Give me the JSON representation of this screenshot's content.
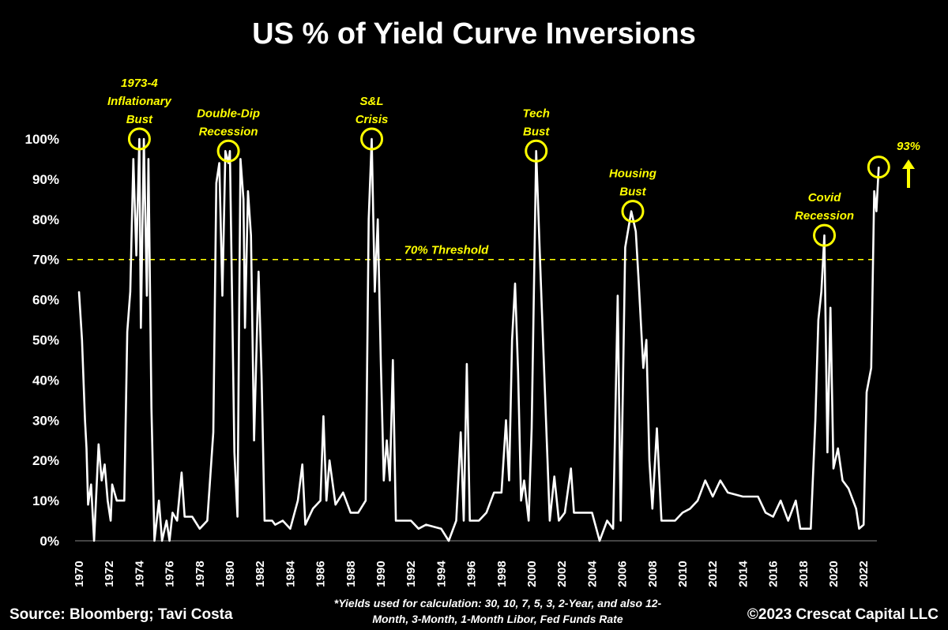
{
  "chart_data": {
    "type": "line",
    "title": "US % of Yield Curve Inversions",
    "xlabel": "",
    "ylabel": "",
    "xlim": [
      1970,
      2023.3
    ],
    "ylim": [
      0,
      100
    ],
    "yticks": [
      "0%",
      "10%",
      "20%",
      "30%",
      "40%",
      "50%",
      "60%",
      "70%",
      "80%",
      "90%",
      "100%"
    ],
    "xticks": [
      "1970",
      "1972",
      "1974",
      "1976",
      "1978",
      "1980",
      "1982",
      "1984",
      "1986",
      "1988",
      "1990",
      "1992",
      "1994",
      "1996",
      "1998",
      "2000",
      "2002",
      "2004",
      "2006",
      "2008",
      "2010",
      "2012",
      "2014",
      "2016",
      "2018",
      "2020",
      "2022"
    ],
    "threshold": {
      "value": 70,
      "label": "70% Threshold"
    },
    "series": [
      {
        "name": "US % of Yield Curve Inversions",
        "x": [
          1970.0,
          1970.2,
          1970.4,
          1970.5,
          1970.6,
          1970.8,
          1971.0,
          1971.3,
          1971.5,
          1971.7,
          1971.9,
          1972.1,
          1972.2,
          1972.5,
          1973.0,
          1973.2,
          1973.4,
          1973.6,
          1973.8,
          1974.0,
          1974.1,
          1974.3,
          1974.5,
          1974.6,
          1974.8,
          1975.0,
          1975.3,
          1975.5,
          1975.8,
          1976.0,
          1976.2,
          1976.5,
          1976.8,
          1977.0,
          1977.5,
          1978.0,
          1978.5,
          1978.9,
          1979.1,
          1979.3,
          1979.5,
          1979.7,
          1979.9,
          1980.0,
          1980.3,
          1980.5,
          1980.7,
          1980.9,
          1981.0,
          1981.2,
          1981.4,
          1981.6,
          1981.9,
          1982.1,
          1982.3,
          1982.8,
          1983.0,
          1983.5,
          1984.0,
          1984.5,
          1984.8,
          1985.0,
          1985.5,
          1986.0,
          1986.2,
          1986.4,
          1986.6,
          1987.0,
          1987.5,
          1988.0,
          1988.5,
          1989.0,
          1989.2,
          1989.4,
          1989.6,
          1989.8,
          1990.0,
          1990.2,
          1990.4,
          1990.6,
          1990.8,
          1991.0,
          1992.0,
          1992.5,
          1993.0,
          1994.0,
          1994.5,
          1995.0,
          1995.3,
          1995.5,
          1995.7,
          1995.9,
          1996.5,
          1997.0,
          1997.5,
          1998.0,
          1998.3,
          1998.5,
          1998.7,
          1998.9,
          1999.1,
          1999.3,
          1999.5,
          1999.8,
          2000.0,
          2000.3,
          2000.6,
          2000.9,
          2001.2,
          2001.5,
          2001.8,
          2002.2,
          2002.6,
          2002.8,
          2004.0,
          2004.5,
          2005.0,
          2005.4,
          2005.7,
          2005.9,
          2006.2,
          2006.6,
          2006.9,
          2007.1,
          2007.4,
          2007.6,
          2007.8,
          2008.0,
          2008.3,
          2008.6,
          2009.5,
          2010.0,
          2010.5,
          2011.0,
          2011.5,
          2012.0,
          2012.5,
          2013.0,
          2014.0,
          2015.0,
          2015.5,
          2016.0,
          2016.5,
          2017.0,
          2017.5,
          2017.8,
          2018.5,
          2018.8,
          2019.0,
          2019.2,
          2019.4,
          2019.6,
          2019.8,
          2020.0,
          2020.3,
          2020.6,
          2021.0,
          2021.5,
          2021.7,
          2022.0,
          2022.2,
          2022.5,
          2022.7,
          2022.85,
          2023.0
        ],
        "values": [
          62,
          50,
          30,
          23,
          9,
          14,
          0,
          24,
          15,
          19,
          10,
          5,
          14,
          10,
          10,
          52,
          62,
          95,
          71,
          100,
          53,
          100,
          61,
          95,
          33,
          0,
          10,
          0,
          5,
          0,
          7,
          5,
          17,
          6,
          6,
          3,
          5,
          27,
          89,
          94,
          61,
          97,
          94,
          97,
          22,
          6,
          95,
          85,
          53,
          87,
          76,
          25,
          67,
          41,
          5,
          5,
          4,
          5,
          3,
          10,
          19,
          4,
          8,
          10,
          31,
          10,
          20,
          9,
          12,
          7,
          7,
          10,
          80,
          100,
          62,
          80,
          45,
          15,
          25,
          15,
          45,
          5,
          5,
          3,
          4,
          3,
          0,
          5,
          27,
          5,
          44,
          5,
          5,
          7,
          12,
          12,
          30,
          15,
          50,
          64,
          42,
          10,
          15,
          5,
          28,
          97,
          65,
          35,
          5,
          16,
          5,
          7,
          18,
          7,
          7,
          0,
          5,
          3,
          61,
          5,
          73,
          82,
          77,
          64,
          43,
          50,
          20,
          8,
          28,
          5,
          5,
          7,
          8,
          10,
          15,
          11,
          15,
          12,
          11,
          11,
          7,
          6,
          10,
          5,
          10,
          3,
          3,
          30,
          55,
          62,
          76,
          22,
          58,
          18,
          23,
          15,
          13,
          8,
          3,
          4,
          37,
          43,
          87,
          82,
          93
        ]
      }
    ],
    "annotations": [
      {
        "label": [
          "1973-4",
          "Inflationary",
          "Bust"
        ],
        "year": 1974.0,
        "value": 100
      },
      {
        "label": [
          "Double-Dip",
          "Recession"
        ],
        "year": 1979.9,
        "value": 97
      },
      {
        "label": [
          "S&L",
          "Crisis"
        ],
        "year": 1989.4,
        "value": 100
      },
      {
        "label": [
          "Tech",
          "Bust"
        ],
        "year": 2000.3,
        "value": 97
      },
      {
        "label": [
          "Housing",
          "Bust"
        ],
        "year": 2006.7,
        "value": 82
      },
      {
        "label": [
          "Covid",
          "Recession"
        ],
        "year": 2019.4,
        "value": 76
      },
      {
        "label": [],
        "year": 2023.0,
        "value": 93
      }
    ],
    "latest_callout": "93%",
    "colors": {
      "line": "#ffffff",
      "accent": "#ffff00",
      "background": "#000000"
    }
  },
  "footer": {
    "source": "Source: Bloomberg; Tavi Costa",
    "footnote_line1": "*Yields used for calculation: 30, 10, 7, 5, 3, 2-Year, and also 12-",
    "footnote_line2": "Month, 3-Month, 1-Month Libor, Fed Funds Rate",
    "copyright": "©2023 Crescat Capital LLC"
  }
}
